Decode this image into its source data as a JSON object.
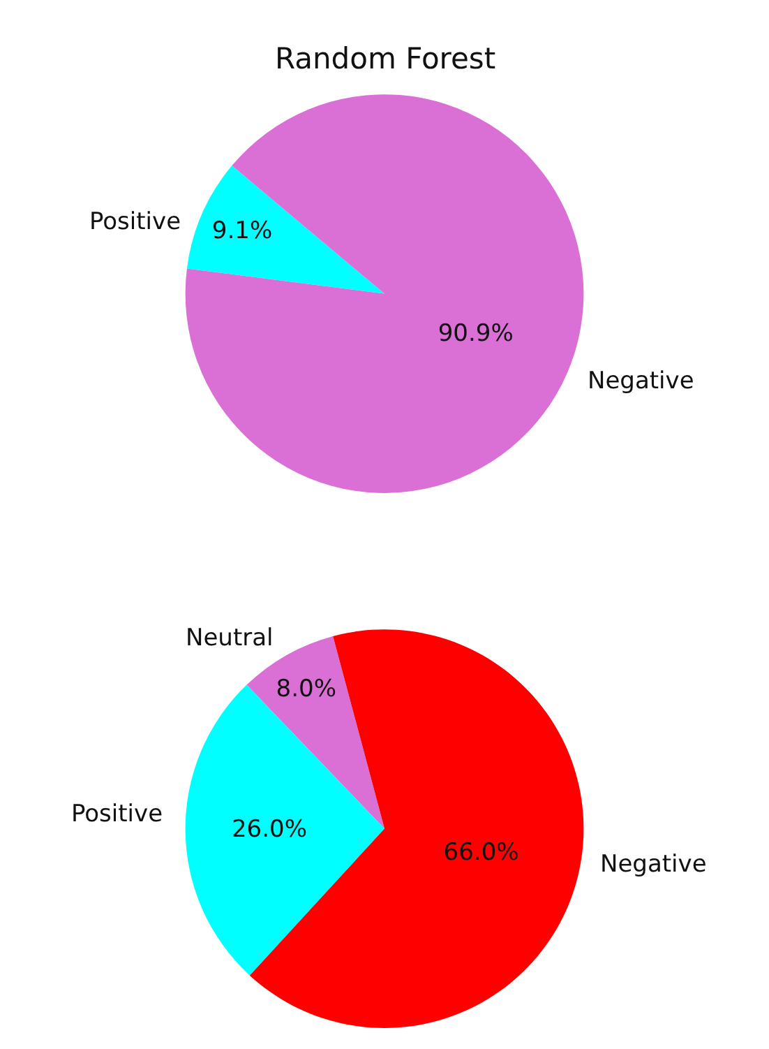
{
  "chart_data": [
    {
      "type": "pie",
      "title": "Random Forest",
      "categories": [
        "Positive",
        "Negative"
      ],
      "values": [
        9.1,
        90.9
      ],
      "colors": [
        "#00ffff",
        "#da70d6"
      ],
      "value_labels": [
        "9.1%",
        "90.9%"
      ]
    },
    {
      "type": "pie",
      "categories": [
        "Neutral",
        "Positive",
        "Negative"
      ],
      "values": [
        8.0,
        26.0,
        66.0
      ],
      "colors": [
        "#da70d6",
        "#00ffff",
        "#ff0000"
      ],
      "value_labels": [
        "8.0%",
        "26.0%",
        "66.0%"
      ]
    }
  ]
}
